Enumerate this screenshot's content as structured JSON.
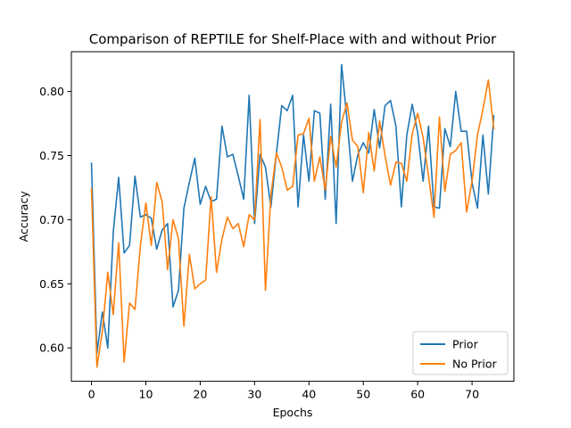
{
  "chart_data": {
    "type": "line",
    "title": "Comparison of REPTILE for Shelf-Place with and without Prior",
    "xlabel": "Epochs",
    "ylabel": "Accuracy",
    "xlim": [
      -3.7,
      77.7
    ],
    "ylim": [
      0.574,
      0.831
    ],
    "xticks": [
      0,
      10,
      20,
      30,
      40,
      50,
      60,
      70
    ],
    "yticks": [
      0.6,
      0.65,
      0.7,
      0.75,
      0.8
    ],
    "ytick_labels": [
      "0.60",
      "0.65",
      "0.70",
      "0.75",
      "0.80"
    ],
    "grid": false,
    "legend_position": "lower-right",
    "series": [
      {
        "name": "Prior",
        "color": "#1f77b4",
        "values": [
          0.744,
          0.596,
          0.628,
          0.6,
          0.69,
          0.733,
          0.674,
          0.68,
          0.734,
          0.702,
          0.704,
          0.701,
          0.677,
          0.692,
          0.697,
          0.632,
          0.645,
          0.709,
          0.729,
          0.748,
          0.712,
          0.726,
          0.714,
          0.716,
          0.773,
          0.749,
          0.751,
          0.734,
          0.716,
          0.797,
          0.697,
          0.751,
          0.741,
          0.71,
          0.751,
          0.789,
          0.785,
          0.797,
          0.71,
          0.766,
          0.73,
          0.785,
          0.783,
          0.716,
          0.79,
          0.697,
          0.821,
          0.778,
          0.73,
          0.751,
          0.76,
          0.752,
          0.786,
          0.756,
          0.789,
          0.793,
          0.773,
          0.71,
          0.766,
          0.79,
          0.768,
          0.73,
          0.773,
          0.71,
          0.709,
          0.771,
          0.757,
          0.8,
          0.769,
          0.769,
          0.729,
          0.709,
          0.766,
          0.72,
          0.781
        ]
      },
      {
        "name": "No Prior",
        "color": "#ff7f0e",
        "values": [
          0.724,
          0.585,
          0.613,
          0.659,
          0.626,
          0.682,
          0.589,
          0.635,
          0.63,
          0.68,
          0.713,
          0.68,
          0.729,
          0.714,
          0.661,
          0.7,
          0.685,
          0.617,
          0.673,
          0.646,
          0.65,
          0.653,
          0.718,
          0.659,
          0.685,
          0.702,
          0.693,
          0.697,
          0.679,
          0.704,
          0.7,
          0.778,
          0.645,
          0.719,
          0.752,
          0.741,
          0.723,
          0.726,
          0.766,
          0.767,
          0.779,
          0.73,
          0.749,
          0.723,
          0.765,
          0.741,
          0.776,
          0.791,
          0.762,
          0.757,
          0.721,
          0.768,
          0.738,
          0.777,
          0.75,
          0.727,
          0.745,
          0.744,
          0.73,
          0.767,
          0.783,
          0.764,
          0.734,
          0.702,
          0.78,
          0.722,
          0.751,
          0.754,
          0.76,
          0.706,
          0.73,
          0.766,
          0.786,
          0.809,
          0.771
        ]
      }
    ]
  }
}
